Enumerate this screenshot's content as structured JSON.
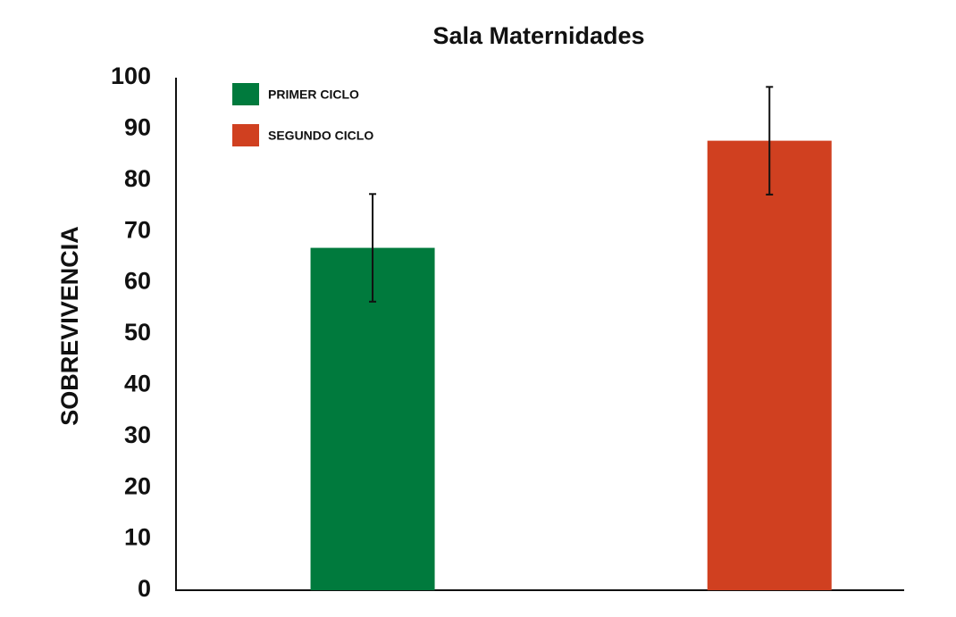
{
  "chart_data": {
    "type": "bar",
    "title": "Sala Maternidades",
    "y_label": "SOBREVIVENCIA",
    "categories": [
      null
    ],
    "series": [
      {
        "name": "PRIMER CICLO",
        "color": "#007a3d",
        "values": [
          66.8
        ],
        "errors": [
          10.5
        ]
      },
      {
        "name": "SEGUNDO CICLO",
        "color": "#d04020",
        "values": [
          87.7
        ],
        "errors": [
          10.5
        ]
      }
    ],
    "ylim": [
      0,
      100
    ],
    "yticks": [
      0,
      10,
      20,
      30,
      40,
      50,
      60,
      70,
      80,
      90,
      100
    ],
    "grid": false,
    "legend": "upper left"
  }
}
